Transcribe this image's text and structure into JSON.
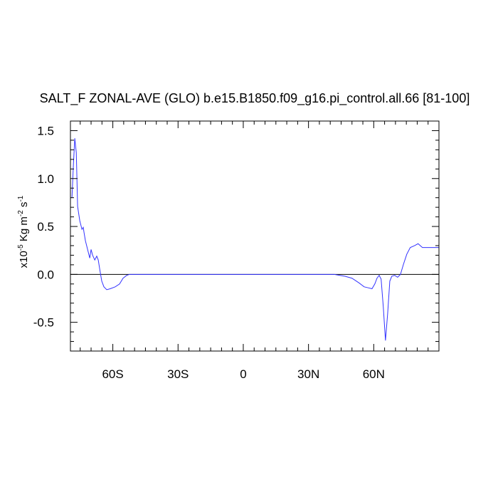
{
  "chart_data": {
    "type": "line",
    "title": "SALT_F ZONAL-AVE (GLO) b.e15.B1850.f09_g16.pi_control.all.66 [81-100]",
    "ylabel": [
      "x10",
      "-5",
      " Kg m",
      "-2",
      " s",
      "-1"
    ],
    "x": [
      -78.8,
      -78.1,
      -77.5,
      -76.8,
      -76.2,
      -75.2,
      -74.2,
      -73.6,
      -73.2,
      -72.6,
      -71.6,
      -70.6,
      -70.0,
      -69.3,
      -68.3,
      -67.4,
      -66.7,
      -66.0,
      -65.1,
      -64.1,
      -62.8,
      -61.2,
      -58.9,
      -56.9,
      -55.3,
      -53.6,
      -52.3,
      41.9,
      46.8,
      50.0,
      53.3,
      55.6,
      57.5,
      59.2,
      60.5,
      61.5,
      62.5,
      63.4,
      64.4,
      65.4,
      66.4,
      67.4,
      68.3,
      69.6,
      71.0,
      72.3,
      73.6,
      75.2,
      76.8,
      78.8,
      80.4,
      82.4,
      84.4,
      90
    ],
    "series": [
      {
        "color": "#3333ff",
        "values": [
          0.8,
          1.16,
          1.42,
          1.27,
          0.71,
          0.56,
          0.47,
          0.49,
          0.43,
          0.35,
          0.26,
          0.17,
          0.26,
          0.2,
          0.15,
          0.19,
          0.15,
          0.05,
          -0.07,
          -0.13,
          -0.16,
          -0.15,
          -0.13,
          -0.1,
          -0.04,
          -0.01,
          0,
          0,
          -0.02,
          -0.04,
          -0.09,
          -0.13,
          -0.14,
          -0.15,
          -0.1,
          -0.04,
          -0.01,
          -0.05,
          -0.34,
          -0.69,
          -0.41,
          -0.07,
          -0.02,
          -0.01,
          -0.03,
          0.0,
          0.1,
          0.21,
          0.28,
          0.3,
          0.32,
          0.28,
          0.28,
          0.28
        ]
      }
    ],
    "xlim": [
      -79.5,
      90
    ],
    "ylim": [
      -0.8,
      1.6
    ],
    "xticks": [
      {
        "value": -60,
        "label": "60S"
      },
      {
        "value": -30,
        "label": "30S"
      },
      0,
      {
        "value": 30,
        "label": "30N"
      },
      {
        "value": 60,
        "label": "60N"
      }
    ],
    "yticks": [
      {
        "value": 1.5,
        "label": "1.5"
      },
      {
        "value": 1.0,
        "label": "1.0"
      },
      {
        "value": 0.5,
        "label": "0.5"
      },
      {
        "value": 0.0,
        "label": "0.0"
      },
      {
        "value": -0.5,
        "label": "-0.5"
      }
    ],
    "xminorticks": [
      -75,
      -70,
      -65,
      -55,
      -50,
      -45,
      -40,
      -35,
      -25,
      -20,
      -15,
      -10,
      -5,
      5,
      10,
      15,
      20,
      25,
      35,
      40,
      45,
      50,
      55,
      65,
      70,
      75,
      80,
      85
    ],
    "yminorticks": [
      -0.7,
      -0.6,
      -0.4,
      -0.3,
      -0.2,
      -0.1,
      0.1,
      0.2,
      0.3,
      0.4,
      0.6,
      0.7,
      0.8,
      0.9,
      1.1,
      1.2,
      1.3,
      1.4
    ],
    "reference_line": 0
  }
}
